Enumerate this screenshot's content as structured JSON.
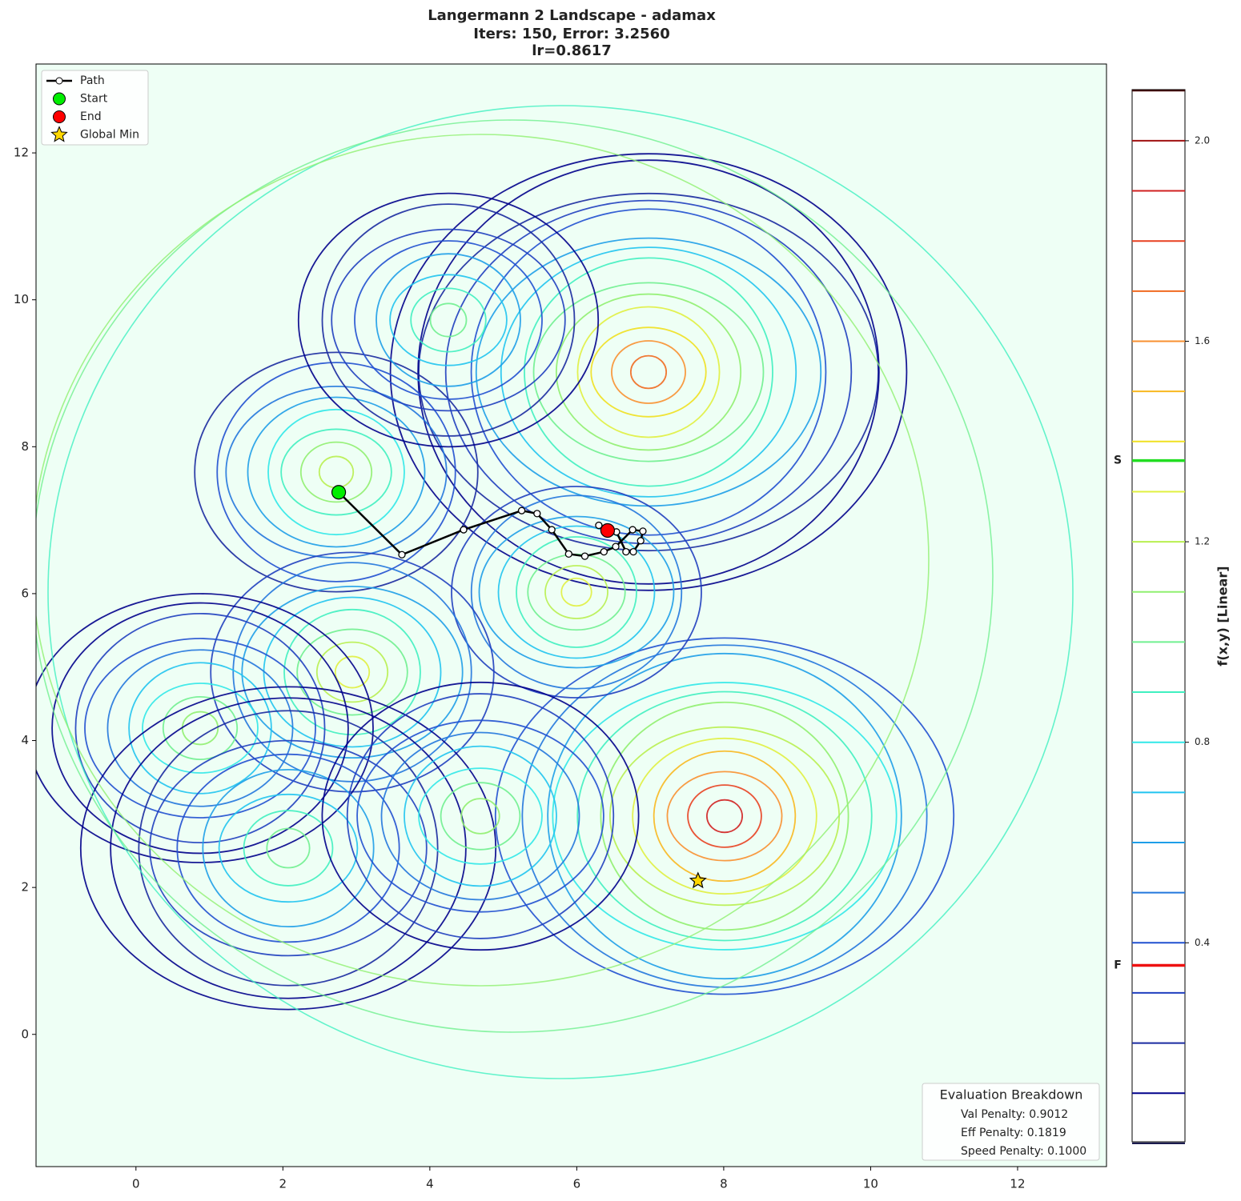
{
  "chart_data": {
    "type": "contour-path",
    "title": "Langermann 2 Landscape - adamax",
    "subtitle": "Iters: 150, Error: 3.2560",
    "subtitle2": "lr=0.8617",
    "xlim": [
      -1.36,
      13.21
    ],
    "ylim": [
      -1.8,
      13.21
    ],
    "xticks": [
      0,
      2,
      4,
      6,
      8,
      10,
      12
    ],
    "yticks": [
      0,
      2,
      4,
      6,
      8,
      10,
      12
    ],
    "series": [
      {
        "name": "Path",
        "color": "#000000",
        "x": [
          2.76,
          3.62,
          4.46,
          5.25,
          5.46,
          5.66,
          5.89,
          6.11,
          6.37,
          6.53,
          6.76,
          6.9,
          6.87,
          6.77,
          6.67,
          6.54,
          6.3,
          6.42
        ],
        "values": [
          7.38,
          6.53,
          6.87,
          7.13,
          7.09,
          6.87,
          6.54,
          6.51,
          6.57,
          6.64,
          6.87,
          6.85,
          6.72,
          6.57,
          6.57,
          6.84,
          6.93,
          6.86
        ]
      },
      {
        "name": "Start",
        "color": "#00ee00",
        "x": [
          2.76
        ],
        "values": [
          7.38
        ]
      },
      {
        "name": "End",
        "color": "#ff0000",
        "x": [
          6.42
        ],
        "values": [
          6.86
        ]
      },
      {
        "name": "Global Min",
        "color": "#ffd700",
        "x": [
          7.65
        ],
        "values": [
          2.09
        ]
      }
    ],
    "colorbar": {
      "label": "f(x,y) [Linear]",
      "ylim": [
        0.003,
        2.102
      ],
      "ticks": [
        0.4,
        0.8,
        1.2,
        1.6,
        {
          "value": 2,
          "label": "2.0"
        }
      ],
      "levels": [
        0.0,
        0.1,
        0.2,
        0.3,
        0.4,
        0.5,
        0.6,
        0.7,
        0.8,
        0.9,
        1.0,
        1.1,
        1.2,
        1.3,
        1.4,
        1.5,
        1.6,
        1.7,
        1.8,
        1.9,
        2.0,
        2.1
      ],
      "colors": [
        "#0a0a40",
        "#00008b",
        "#1a2aa0",
        "#1f3fbf",
        "#2050d0",
        "#2277dd",
        "#1e9ee8",
        "#20c4f0",
        "#30e8e8",
        "#40f0c0",
        "#70f090",
        "#90f070",
        "#b8f050",
        "#e0f040",
        "#f0e020",
        "#f8b820",
        "#f89030",
        "#f06a20",
        "#e84020",
        "#d02020",
        "#a01010",
        "#400000"
      ],
      "markers": [
        {
          "label": "S",
          "value": 1.362,
          "color": "#22dd22"
        },
        {
          "label": "F",
          "value": 0.355,
          "color": "#ee1111"
        }
      ]
    },
    "evaluation": {
      "title": "Evaluation Breakdown",
      "lines": [
        "Val Penalty: 0.9012",
        "Eff Penalty: 0.1819",
        "Speed Penalty: 0.1000"
      ]
    }
  }
}
